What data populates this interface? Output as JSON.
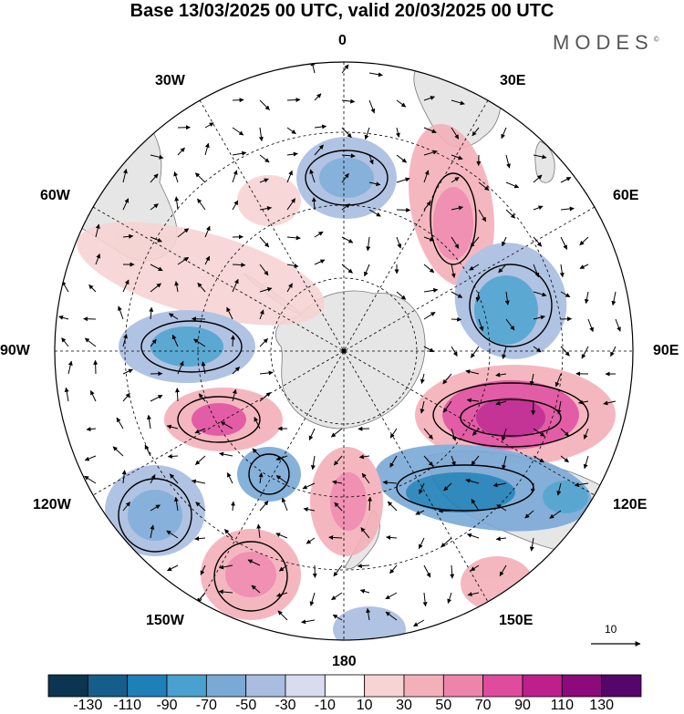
{
  "title": "Base 13/03/2025 00 UTC, valid 20/03/2025 00 UTC",
  "logo": "MODES",
  "logo_mark": "©",
  "longitude_labels": {
    "lon_0": "0",
    "lon_30e": "30E",
    "lon_60e": "60E",
    "lon_90e": "90E",
    "lon_120e": "120E",
    "lon_150e": "150E",
    "lon_180": "180",
    "lon_150w": "150W",
    "lon_120w": "120W",
    "lon_90w": "90W",
    "lon_60w": "60W",
    "lon_30w": "30W"
  },
  "reference_vector_label": "10",
  "colorbar": {
    "labels": [
      "-130",
      "-110",
      "-90",
      "-70",
      "-50",
      "-30",
      "-10",
      "10",
      "30",
      "50",
      "70",
      "90",
      "110",
      "130"
    ],
    "colors": [
      "#0b3550",
      "#155e8c",
      "#1f7fb8",
      "#4aa0cf",
      "#7aa9d6",
      "#a9bde0",
      "#d9dcef",
      "#ffffff",
      "#f7d3d3",
      "#f4b0b9",
      "#ef84ab",
      "#e04c9d",
      "#bd1f8b",
      "#8c0a7b",
      "#54066a"
    ]
  },
  "map": {
    "projection": "south-polar-stereographic",
    "land_color": "#e3e3e3",
    "graticule": "dashed"
  }
}
